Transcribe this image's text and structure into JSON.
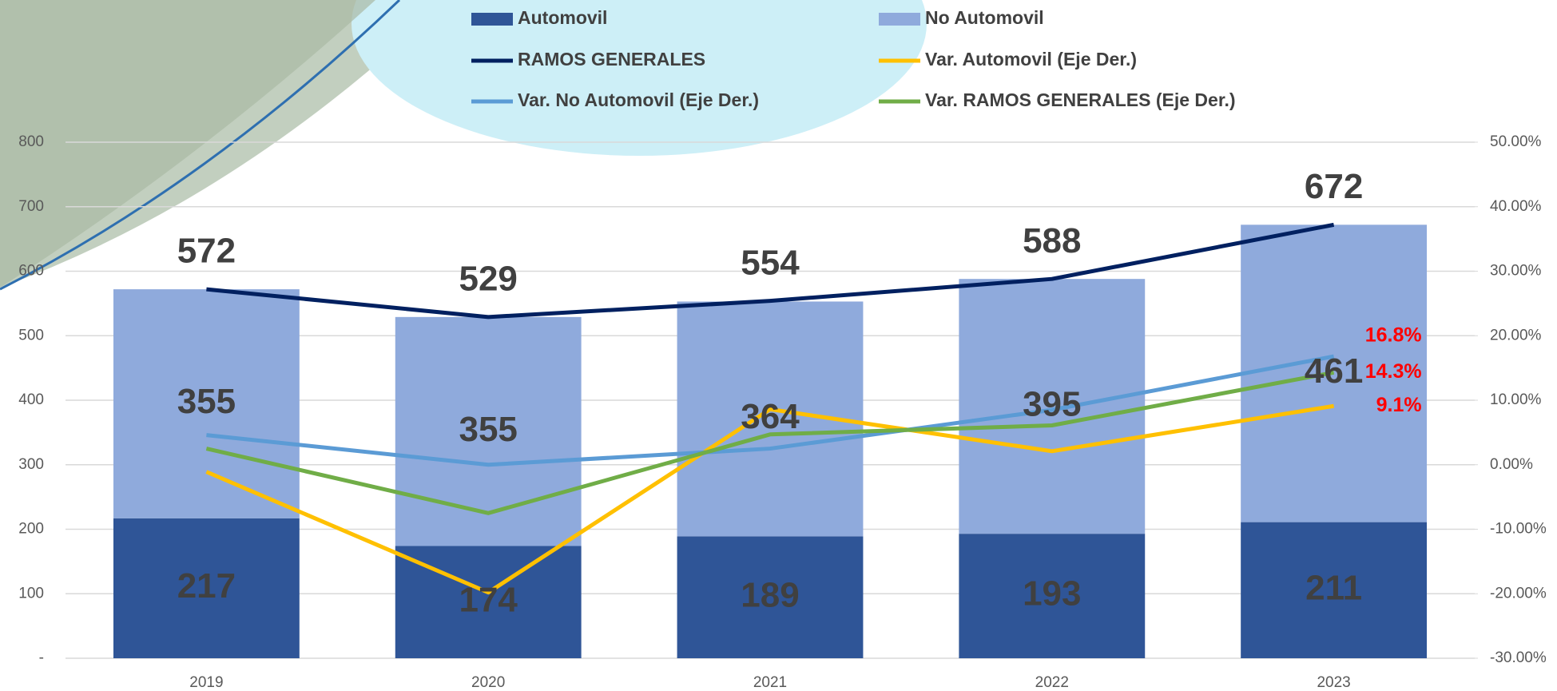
{
  "chart_data": {
    "type": "bar",
    "categories": [
      "2019",
      "2020",
      "2021",
      "2022",
      "2023"
    ],
    "series": [
      {
        "name": "Automovil",
        "type": "bar",
        "color": "#2f5597",
        "values": [
          217,
          174,
          189,
          193,
          211
        ]
      },
      {
        "name": "No Automovil",
        "type": "bar",
        "color": "#8faadc",
        "values": [
          355,
          355,
          364,
          395,
          461
        ]
      },
      {
        "name": "RAMOS GENERALES",
        "type": "line",
        "color": "#002060",
        "values": [
          572,
          529,
          554,
          588,
          672
        ]
      },
      {
        "name": "Var. Automovil (Eje Der.)",
        "type": "line",
        "axis": "y2",
        "color": "#ffc000",
        "values": [
          -1.1,
          -19.8,
          8.6,
          2.1,
          9.1
        ],
        "value_labels": [
          null,
          null,
          null,
          null,
          "9.1%"
        ]
      },
      {
        "name": "Var. No Automovil (Eje Der.)",
        "type": "line",
        "axis": "y2",
        "color": "#5b9bd5",
        "values": [
          4.6,
          0.0,
          2.5,
          8.5,
          16.8
        ],
        "value_labels": [
          null,
          null,
          null,
          null,
          "16.8%"
        ]
      },
      {
        "name": "Var. RAMOS GENERALES (Eje Der.)",
        "type": "line",
        "axis": "y2",
        "color": "#70ad47",
        "values": [
          2.5,
          -7.5,
          4.7,
          6.1,
          14.3
        ],
        "value_labels": [
          null,
          null,
          null,
          null,
          "14.3%"
        ]
      }
    ],
    "stacked": true,
    "ylim": [
      0,
      800
    ],
    "yticks": [
      {
        "value": 0,
        "label": "-"
      },
      100,
      200,
      300,
      400,
      500,
      600,
      700,
      800
    ],
    "y2lim": [
      -30,
      50
    ],
    "y2ticks": [
      {
        "value": -30,
        "label": "-30.00%"
      },
      {
        "value": -20,
        "label": "-20.00%"
      },
      {
        "value": -10,
        "label": "-10.00%"
      },
      {
        "value": 0,
        "label": "0.00%"
      },
      {
        "value": 10,
        "label": "10.00%"
      },
      {
        "value": 20,
        "label": "20.00%"
      },
      {
        "value": 30,
        "label": "30.00%"
      },
      {
        "value": 40,
        "label": "40.00%"
      },
      {
        "value": 50,
        "label": "50.00%"
      }
    ],
    "grid": true
  }
}
